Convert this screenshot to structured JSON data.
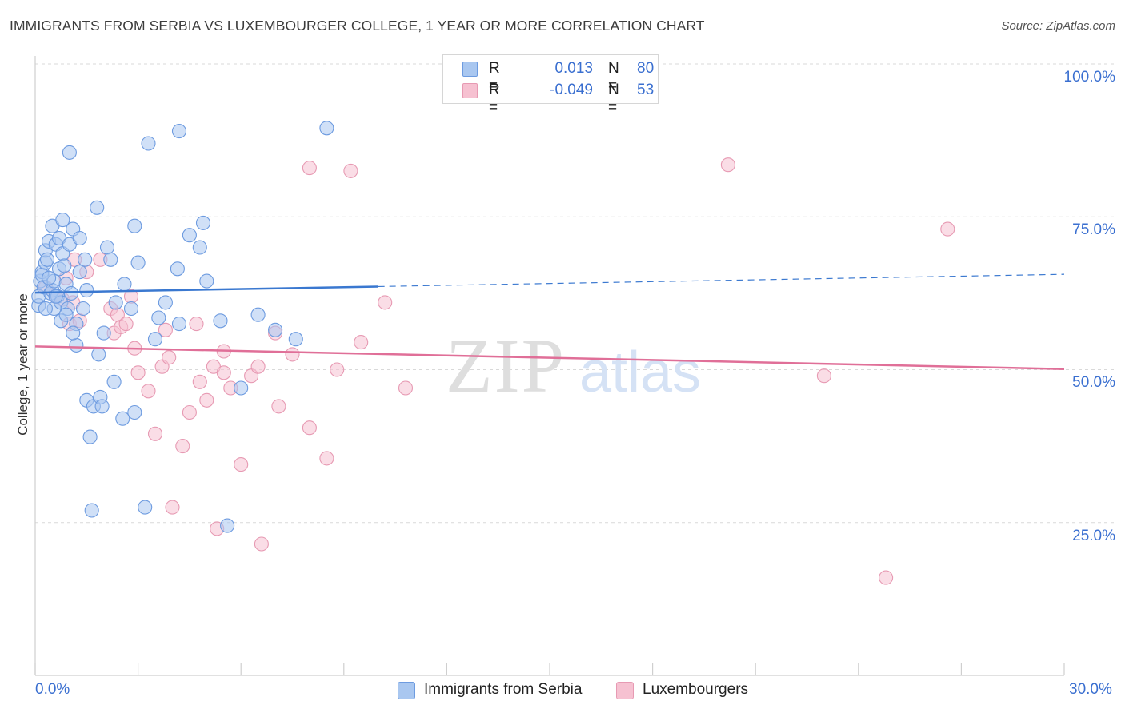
{
  "header": {
    "title": "IMMIGRANTS FROM SERBIA VS LUXEMBOURGER COLLEGE, 1 YEAR OR MORE CORRELATION CHART",
    "source": "Source: ZipAtlas.com"
  },
  "watermark": {
    "zip": "ZIP",
    "atlas": "atlas"
  },
  "legend": {
    "rows": [
      {
        "r_label": "R =",
        "r_value": "0.013",
        "n_label": "N =",
        "n_value": "80"
      },
      {
        "r_label": "R =",
        "r_value": "-0.049",
        "n_label": "N =",
        "n_value": "53"
      }
    ]
  },
  "bottom_legend": {
    "serbia": "Immigrants from Serbia",
    "lux": "Luxembourgers"
  },
  "axes": {
    "x_min_label": "0.0%",
    "x_max_label": "30.0%",
    "y_labels": [
      "100.0%",
      "75.0%",
      "50.0%",
      "25.0%"
    ],
    "ylabel": "College, 1 year or more"
  },
  "colors": {
    "blue_fill": "#a9c7f0",
    "blue_stroke": "#6d9be0",
    "blue_line": "#3a78d0",
    "pink_fill": "#f6c1d1",
    "pink_stroke": "#e79ab3",
    "pink_line": "#e06f98",
    "accent": "#3a6fd0"
  },
  "chart_data": {
    "type": "scatter",
    "title": "IMMIGRANTS FROM SERBIA VS LUXEMBOURGER COLLEGE, 1 YEAR OR MORE CORRELATION CHART",
    "xlabel": "",
    "ylabel": "College, 1 year or more",
    "xlim": [
      0,
      30
    ],
    "ylim": [
      0,
      100
    ],
    "y_ticks": [
      25,
      50,
      75,
      100
    ],
    "series": [
      {
        "name": "Immigrants from Serbia",
        "color": "blue",
        "r": 0.013,
        "n": 80,
        "trend": {
          "x0": 0,
          "y0": 62.6,
          "x1": 30,
          "y1": 65.6,
          "solid_until": 10
        },
        "points": [
          [
            0.1,
            60.5
          ],
          [
            0.1,
            62.0
          ],
          [
            0.15,
            64.5
          ],
          [
            0.2,
            66.0
          ],
          [
            0.2,
            65.5
          ],
          [
            0.25,
            63.5
          ],
          [
            0.3,
            69.5
          ],
          [
            0.3,
            67.5
          ],
          [
            0.35,
            68.0
          ],
          [
            0.4,
            71.0
          ],
          [
            0.45,
            62.5
          ],
          [
            0.5,
            73.5
          ],
          [
            0.5,
            63.0
          ],
          [
            0.55,
            60.0
          ],
          [
            0.55,
            64.5
          ],
          [
            0.6,
            70.5
          ],
          [
            0.65,
            62.0
          ],
          [
            0.7,
            71.5
          ],
          [
            0.7,
            66.5
          ],
          [
            0.75,
            61.0
          ],
          [
            0.75,
            58.0
          ],
          [
            0.8,
            74.5
          ],
          [
            0.8,
            69.0
          ],
          [
            0.85,
            67.0
          ],
          [
            0.9,
            64.0
          ],
          [
            0.95,
            60.0
          ],
          [
            1.0,
            70.5
          ],
          [
            1.05,
            62.5
          ],
          [
            1.1,
            73.0
          ],
          [
            1.2,
            57.5
          ],
          [
            1.2,
            54.0
          ],
          [
            1.3,
            71.5
          ],
          [
            1.3,
            66.0
          ],
          [
            1.4,
            60.0
          ],
          [
            1.45,
            68.0
          ],
          [
            1.5,
            45.0
          ],
          [
            1.6,
            39.0
          ],
          [
            1.65,
            27.0
          ],
          [
            1.7,
            44.0
          ],
          [
            1.8,
            76.5
          ],
          [
            1.85,
            52.5
          ],
          [
            1.9,
            45.5
          ],
          [
            1.95,
            44.0
          ],
          [
            2.1,
            70.0
          ],
          [
            2.2,
            68.0
          ],
          [
            2.3,
            48.0
          ],
          [
            2.35,
            61.0
          ],
          [
            2.55,
            42.0
          ],
          [
            2.8,
            60.0
          ],
          [
            2.9,
            73.5
          ],
          [
            2.9,
            43.0
          ],
          [
            3.0,
            67.5
          ],
          [
            3.2,
            27.5
          ],
          [
            3.3,
            87.0
          ],
          [
            3.6,
            58.5
          ],
          [
            4.15,
            66.5
          ],
          [
            4.2,
            57.5
          ],
          [
            4.2,
            89.0
          ],
          [
            4.5,
            72.0
          ],
          [
            3.5,
            55.0
          ],
          [
            4.8,
            70.0
          ],
          [
            4.9,
            74.0
          ],
          [
            5.0,
            64.5
          ],
          [
            5.6,
            24.5
          ],
          [
            6.0,
            47.0
          ],
          [
            6.5,
            59.0
          ],
          [
            7.0,
            56.5
          ],
          [
            7.6,
            55.0
          ],
          [
            8.5,
            89.5
          ],
          [
            1.0,
            85.5
          ],
          [
            0.3,
            60.0
          ],
          [
            0.4,
            65.0
          ],
          [
            0.6,
            62.0
          ],
          [
            0.9,
            59.0
          ],
          [
            1.1,
            56.0
          ],
          [
            1.5,
            63.0
          ],
          [
            2.0,
            56.0
          ],
          [
            2.6,
            64.0
          ],
          [
            3.8,
            61.0
          ],
          [
            5.4,
            58.0
          ]
        ]
      },
      {
        "name": "Luxembourgers",
        "color": "pink",
        "r": -0.049,
        "n": 53,
        "trend": {
          "x0": 0,
          "y0": 53.8,
          "x1": 30,
          "y1": 50.1
        },
        "points": [
          [
            0.3,
            63.5
          ],
          [
            0.6,
            62.0
          ],
          [
            0.8,
            61.5
          ],
          [
            0.9,
            65.0
          ],
          [
            1.0,
            57.5
          ],
          [
            1.1,
            61.0
          ],
          [
            1.15,
            68.0
          ],
          [
            1.3,
            58.0
          ],
          [
            1.5,
            66.0
          ],
          [
            1.9,
            68.0
          ],
          [
            2.2,
            60.0
          ],
          [
            2.3,
            56.0
          ],
          [
            2.4,
            59.0
          ],
          [
            2.5,
            57.0
          ],
          [
            2.65,
            57.5
          ],
          [
            2.8,
            62.0
          ],
          [
            2.9,
            53.5
          ],
          [
            3.0,
            49.5
          ],
          [
            3.3,
            46.5
          ],
          [
            3.5,
            39.5
          ],
          [
            3.7,
            50.5
          ],
          [
            3.8,
            56.5
          ],
          [
            3.9,
            52.0
          ],
          [
            4.0,
            27.5
          ],
          [
            4.3,
            37.5
          ],
          [
            4.5,
            43.0
          ],
          [
            4.7,
            57.5
          ],
          [
            4.8,
            48.0
          ],
          [
            5.0,
            45.0
          ],
          [
            5.2,
            50.5
          ],
          [
            5.3,
            24.0
          ],
          [
            5.5,
            49.5
          ],
          [
            5.5,
            53.0
          ],
          [
            5.7,
            47.0
          ],
          [
            6.0,
            34.5
          ],
          [
            6.3,
            49.0
          ],
          [
            6.5,
            50.5
          ],
          [
            6.6,
            21.5
          ],
          [
            7.0,
            56.0
          ],
          [
            7.1,
            44.0
          ],
          [
            7.5,
            52.5
          ],
          [
            8.0,
            40.5
          ],
          [
            8.0,
            83.0
          ],
          [
            8.5,
            35.5
          ],
          [
            8.8,
            50.0
          ],
          [
            9.2,
            82.5
          ],
          [
            9.5,
            54.5
          ],
          [
            10.2,
            61.0
          ],
          [
            10.8,
            47.0
          ],
          [
            20.2,
            83.5
          ],
          [
            23.0,
            49.0
          ],
          [
            24.8,
            16.0
          ],
          [
            26.6,
            73.0
          ]
        ]
      }
    ]
  }
}
